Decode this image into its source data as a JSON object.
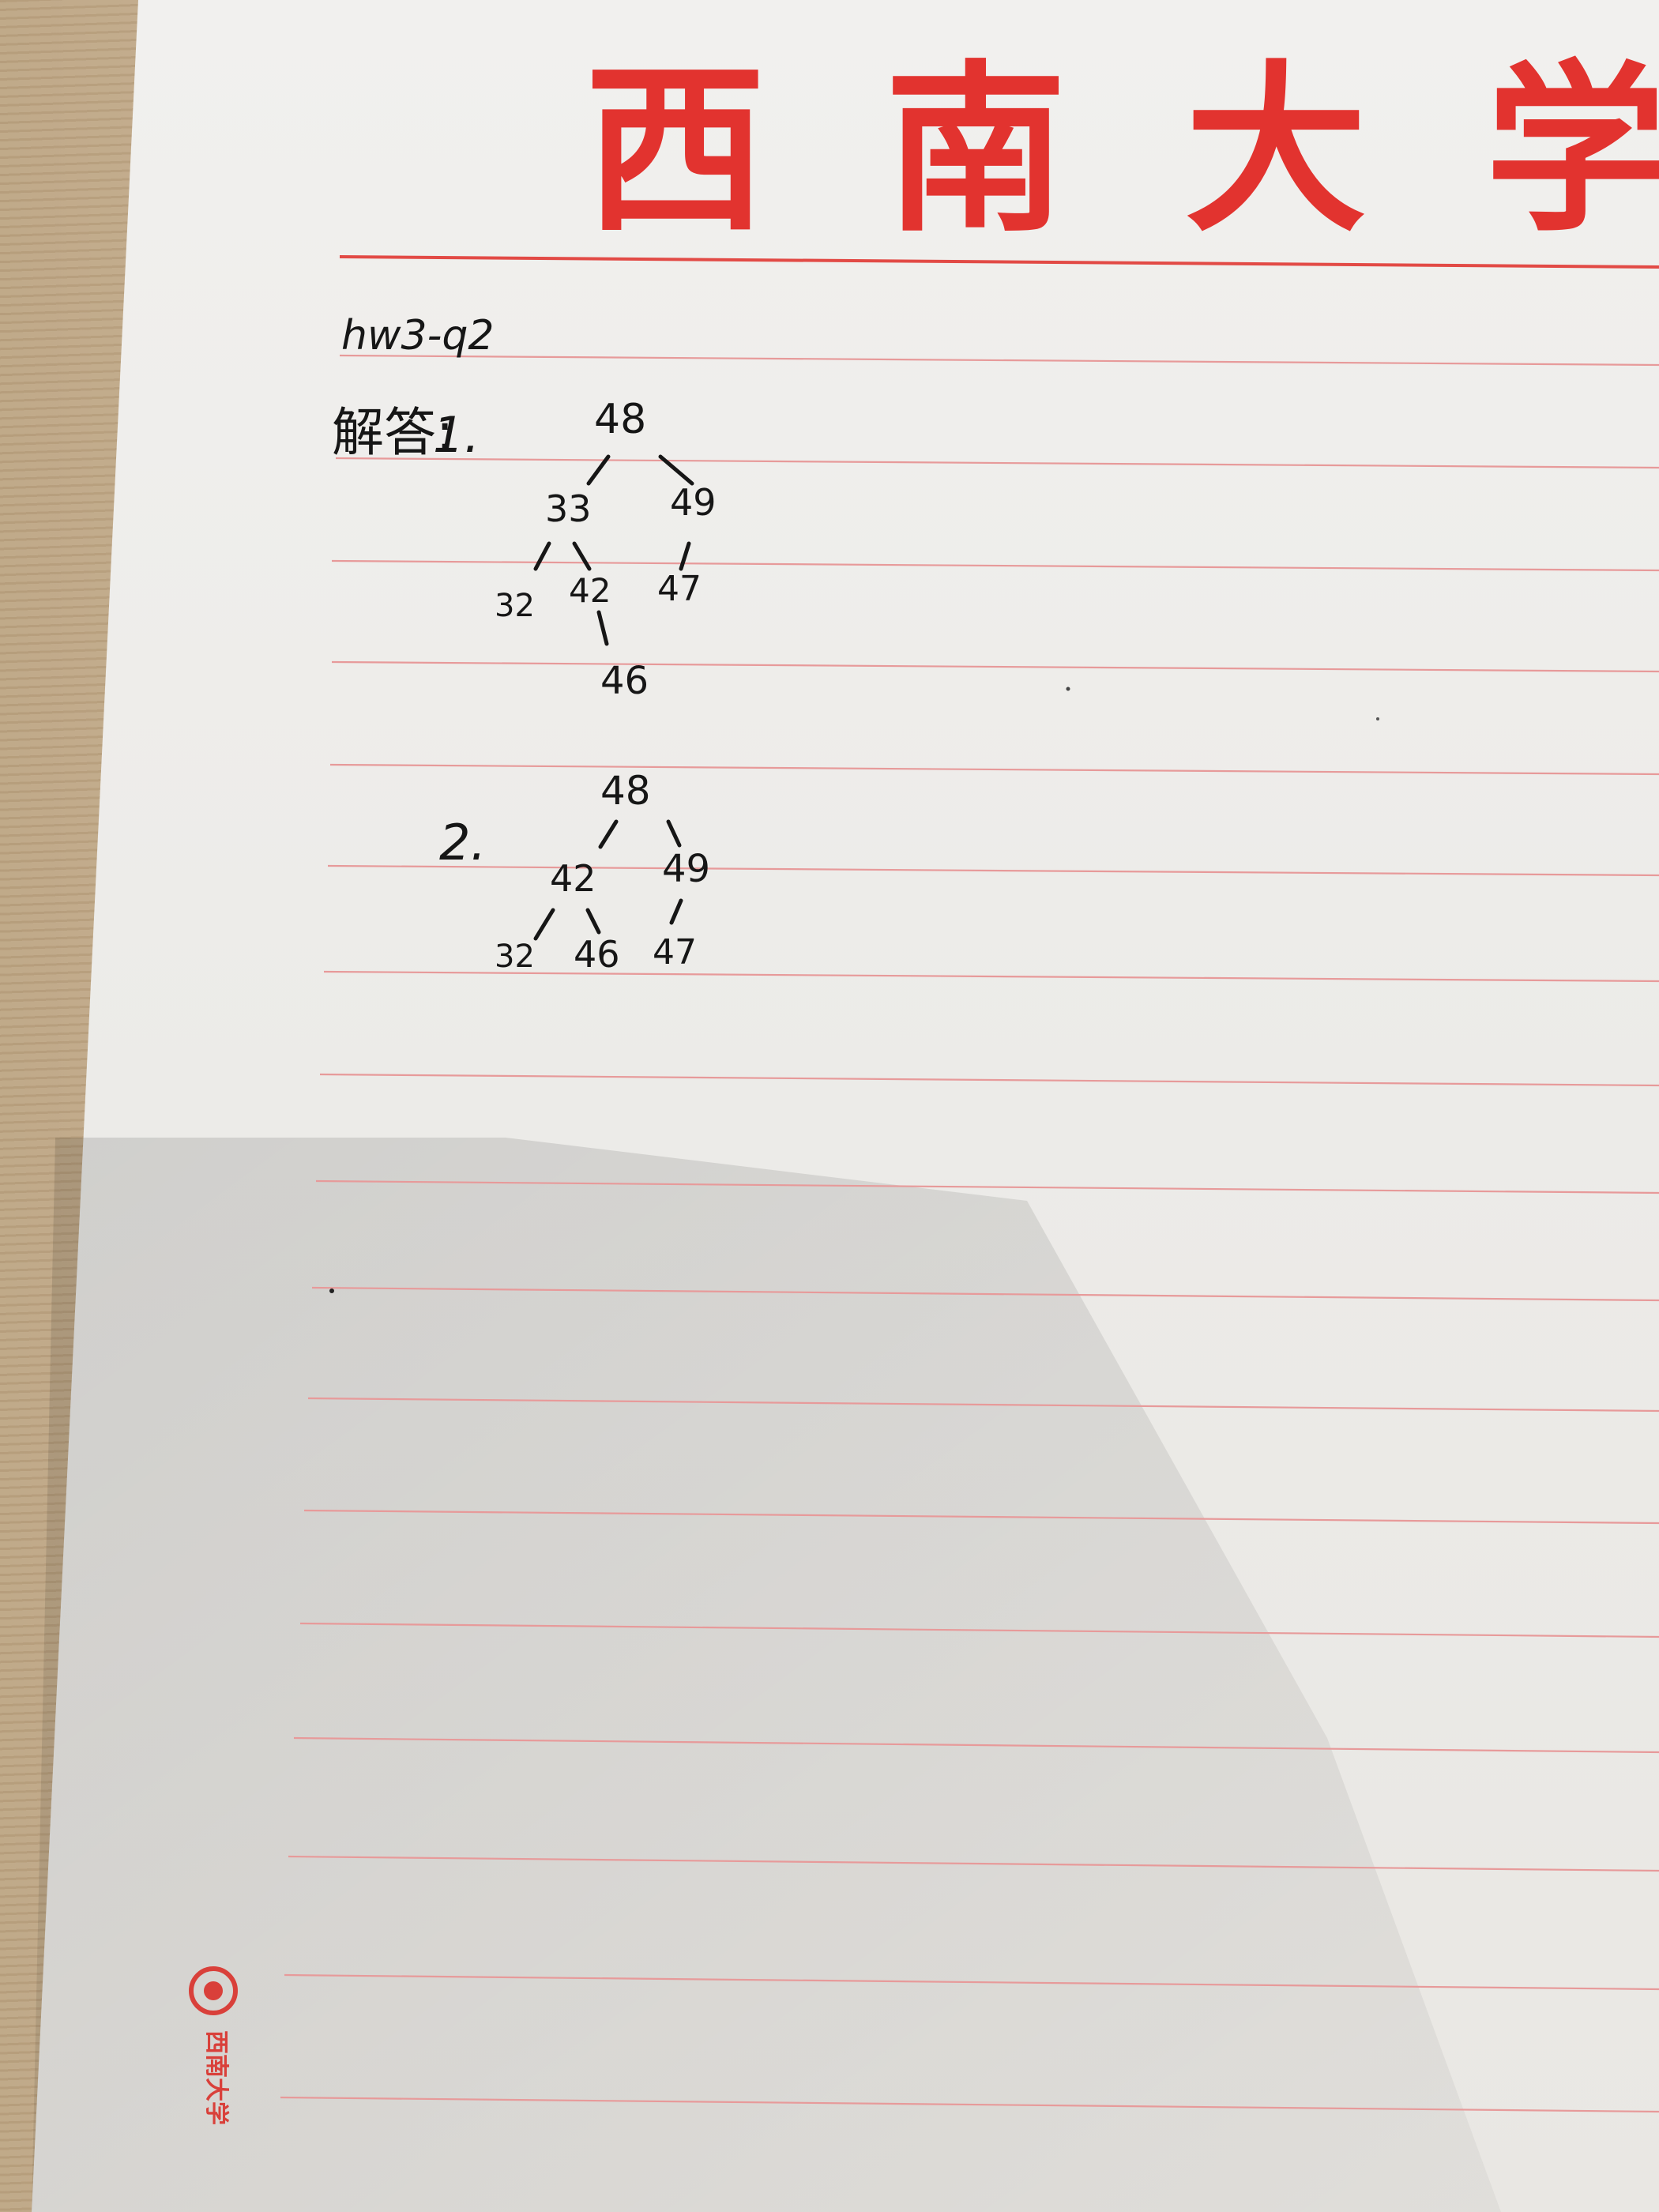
{
  "header": {
    "university_title": "西南大学",
    "title_color": "#e2332f"
  },
  "note": {
    "heading": "hw3-q2",
    "answer_label": "解答:",
    "part1_label": "1.",
    "part2_label": "2."
  },
  "tree1": {
    "nodes": [
      "48",
      "33",
      "49",
      "32",
      "42",
      "47",
      "46"
    ],
    "edges": [
      [
        "48",
        "33"
      ],
      [
        "48",
        "49"
      ],
      [
        "33",
        "32"
      ],
      [
        "33",
        "42"
      ],
      [
        "49",
        "47"
      ],
      [
        "42",
        "46"
      ]
    ]
  },
  "tree2": {
    "nodes": [
      "48",
      "42",
      "49",
      "32",
      "46",
      "47"
    ],
    "edges": [
      [
        "48",
        "42"
      ],
      [
        "48",
        "49"
      ],
      [
        "42",
        "32"
      ],
      [
        "42",
        "46"
      ],
      [
        "49",
        "47"
      ]
    ]
  },
  "footer": {
    "logo_text": "西南大学"
  },
  "colors": {
    "rule_line": "#e79a9a",
    "ink": "#161616",
    "paper": "#efedea"
  }
}
